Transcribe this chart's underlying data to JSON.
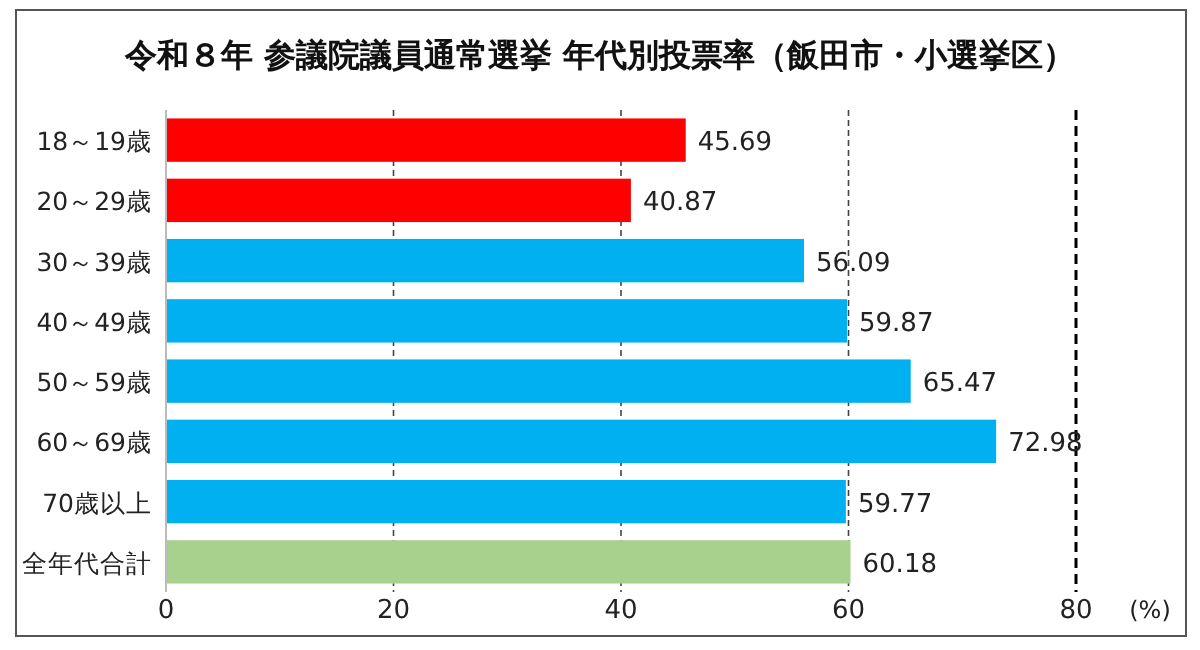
{
  "chart_data": {
    "type": "bar",
    "orientation": "horizontal",
    "title": "令和８年 参議院議員通常選挙 年代別投票率（飯田市・小選挙区）",
    "xlabel": "(%)",
    "categories": [
      "18～19歳",
      "20～29歳",
      "30～39歳",
      "40～49歳",
      "50～59歳",
      "60～69歳",
      "70歳以上",
      "全年代合計"
    ],
    "values": [
      45.69,
      40.87,
      56.09,
      59.87,
      65.47,
      72.98,
      59.77,
      60.18
    ],
    "colors": [
      "#ff0000",
      "#ff0000",
      "#00b0f0",
      "#00b0f0",
      "#00b0f0",
      "#00b0f0",
      "#00b0f0",
      "#a9d18e"
    ],
    "xlim": [
      0,
      80
    ],
    "xticks": [
      0,
      20,
      40,
      60,
      80
    ],
    "grid": "x",
    "data_labels": true
  }
}
